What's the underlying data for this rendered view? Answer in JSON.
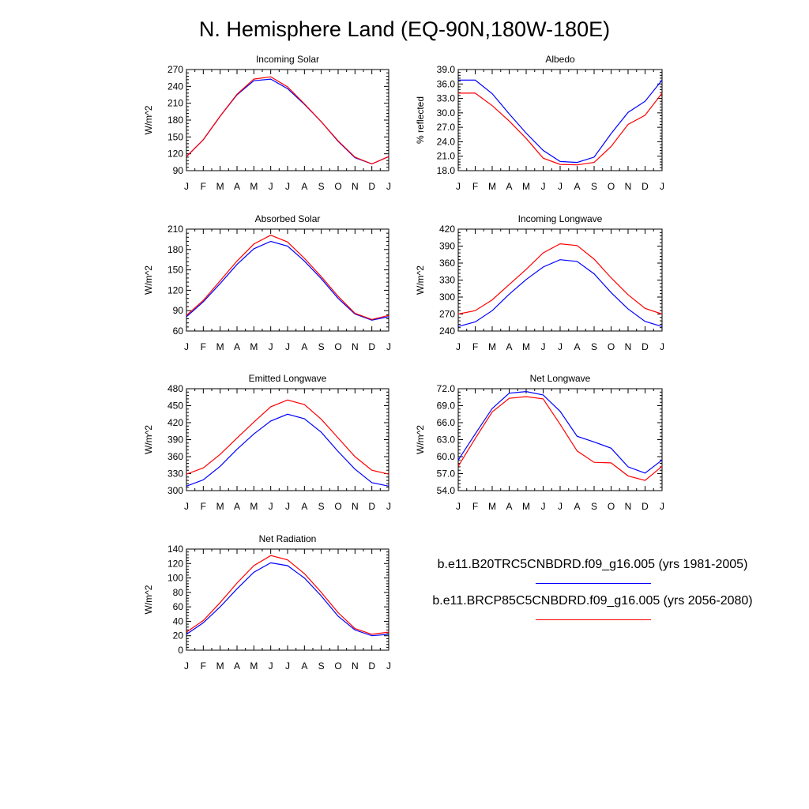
{
  "title": "N. Hemisphere Land (EQ-90N,180W-180E)",
  "colors": {
    "run1": "#0000ff",
    "run2": "#ff0000",
    "axis": "#000000"
  },
  "legend": [
    {
      "label": "b.e11.B20TRC5CNBDRD.f09_g16.005 (yrs 1981-2005)",
      "color": "#0000ff"
    },
    {
      "label": "b.e11.BRCP85C5CNBDRD.f09_g16.005 (yrs 2056-2080)",
      "color": "#ff0000"
    }
  ],
  "chart_data": [
    {
      "type": "line",
      "title": "Incoming Solar",
      "ylabel": "W/m^2",
      "categories": [
        "J",
        "F",
        "M",
        "A",
        "M",
        "J",
        "J",
        "A",
        "S",
        "O",
        "N",
        "D",
        "J"
      ],
      "ylim": [
        90,
        270
      ],
      "yticks": [
        "90",
        "120",
        "150",
        "180",
        "210",
        "240",
        "270"
      ],
      "series": [
        {
          "name": "b.e11.B20TRC5CNBDRD.f09_g16.005 (yrs 1981-2005)",
          "values": [
            115,
            145,
            187,
            225,
            250,
            253,
            236,
            208,
            177,
            142,
            113,
            102,
            115
          ]
        },
        {
          "name": "b.e11.BRCP85C5CNBDRD.f09_g16.005 (yrs 2056-2080)",
          "values": [
            115,
            145,
            187,
            226,
            253,
            257,
            239,
            209,
            177,
            143,
            114,
            102,
            115
          ]
        }
      ]
    },
    {
      "type": "line",
      "title": "Albedo",
      "ylabel": "% reflected",
      "categories": [
        "J",
        "F",
        "M",
        "A",
        "M",
        "J",
        "J",
        "A",
        "S",
        "O",
        "N",
        "D",
        "J"
      ],
      "ylim": [
        18,
        39
      ],
      "yticks": [
        "18.0",
        "21.0",
        "24.0",
        "27.0",
        "30.0",
        "33.0",
        "36.0",
        "39.0"
      ],
      "series": [
        {
          "name": "b.e11.B20TRC5CNBDRD.f09_g16.005 (yrs 1981-2005)",
          "values": [
            36.8,
            36.8,
            34.0,
            29.8,
            25.8,
            22.2,
            19.9,
            19.7,
            20.8,
            25.7,
            30.1,
            32.4,
            36.8
          ]
        },
        {
          "name": "b.e11.BRCP85C5CNBDRD.f09_g16.005 (yrs 2056-2080)",
          "values": [
            34.1,
            34.1,
            31.5,
            28.3,
            24.7,
            20.6,
            19.3,
            19.2,
            19.7,
            23.0,
            27.6,
            29.5,
            34.1
          ]
        }
      ]
    },
    {
      "type": "line",
      "title": "Absorbed Solar",
      "ylabel": "W/m^2",
      "categories": [
        "J",
        "F",
        "M",
        "A",
        "M",
        "J",
        "J",
        "A",
        "S",
        "O",
        "N",
        "D",
        "J"
      ],
      "ylim": [
        60,
        210
      ],
      "yticks": [
        "60",
        "90",
        "120",
        "150",
        "180",
        "210"
      ],
      "series": [
        {
          "name": "b.e11.B20TRC5CNBDRD.f09_g16.005 (yrs 1981-2005)",
          "values": [
            81,
            103,
            130,
            158,
            181,
            192,
            185,
            163,
            137,
            108,
            85,
            76,
            81
          ]
        },
        {
          "name": "b.e11.BRCP85C5CNBDRD.f09_g16.005 (yrs 2056-2080)",
          "values": [
            83,
            105,
            134,
            163,
            188,
            201,
            191,
            167,
            140,
            111,
            86,
            77,
            83
          ]
        }
      ]
    },
    {
      "type": "line",
      "title": "Incoming Longwave",
      "ylabel": "W/m^2",
      "categories": [
        "J",
        "F",
        "M",
        "A",
        "M",
        "J",
        "J",
        "A",
        "S",
        "O",
        "N",
        "D",
        "J"
      ],
      "ylim": [
        240,
        420
      ],
      "yticks": [
        "240",
        "270",
        "300",
        "330",
        "360",
        "390",
        "420"
      ],
      "series": [
        {
          "name": "b.e11.B20TRC5CNBDRD.f09_g16.005 (yrs 1981-2005)",
          "values": [
            248,
            256,
            276,
            305,
            331,
            353,
            366,
            363,
            341,
            308,
            279,
            257,
            248
          ]
        },
        {
          "name": "b.e11.BRCP85C5CNBDRD.f09_g16.005 (yrs 2056-2080)",
          "values": [
            270,
            276,
            295,
            322,
            349,
            378,
            394,
            391,
            367,
            334,
            304,
            280,
            270
          ]
        }
      ]
    },
    {
      "type": "line",
      "title": "Emitted Longwave",
      "ylabel": "W/m^2",
      "categories": [
        "J",
        "F",
        "M",
        "A",
        "M",
        "J",
        "J",
        "A",
        "S",
        "O",
        "N",
        "D",
        "J"
      ],
      "ylim": [
        300,
        480
      ],
      "yticks": [
        "300",
        "330",
        "360",
        "390",
        "420",
        "450",
        "480"
      ],
      "series": [
        {
          "name": "b.e11.B20TRC5CNBDRD.f09_g16.005 (yrs 1981-2005)",
          "values": [
            308,
            319,
            343,
            373,
            400,
            423,
            435,
            427,
            403,
            369,
            338,
            314,
            308
          ]
        },
        {
          "name": "b.e11.BRCP85C5CNBDRD.f09_g16.005 (yrs 2056-2080)",
          "values": [
            329,
            340,
            364,
            393,
            421,
            448,
            460,
            452,
            426,
            393,
            360,
            336,
            329
          ]
        }
      ]
    },
    {
      "type": "line",
      "title": "Net Longwave",
      "ylabel": "W/m^2",
      "categories": [
        "J",
        "F",
        "M",
        "A",
        "M",
        "J",
        "J",
        "A",
        "S",
        "O",
        "N",
        "D",
        "J"
      ],
      "ylim": [
        54,
        72
      ],
      "yticks": [
        "54.0",
        "57.0",
        "60.0",
        "63.0",
        "66.0",
        "69.0",
        "72.0"
      ],
      "series": [
        {
          "name": "b.e11.B20TRC5CNBDRD.f09_g16.005 (yrs 1981-2005)",
          "values": [
            59.4,
            64.0,
            68.5,
            71.2,
            71.5,
            70.9,
            68.0,
            63.6,
            62.6,
            61.5,
            58.2,
            57.1,
            59.4
          ]
        },
        {
          "name": "b.e11.BRCP85C5CNBDRD.f09_g16.005 (yrs 2056-2080)",
          "values": [
            58.3,
            63.2,
            67.9,
            70.3,
            70.6,
            70.2,
            65.7,
            61.0,
            59.0,
            58.9,
            56.6,
            55.8,
            58.3
          ]
        }
      ]
    },
    {
      "type": "line",
      "title": "Net Radiation",
      "ylabel": "W/m^2",
      "categories": [
        "J",
        "F",
        "M",
        "A",
        "M",
        "J",
        "J",
        "A",
        "S",
        "O",
        "N",
        "D",
        "J"
      ],
      "ylim": [
        0,
        140
      ],
      "yticks": [
        "0",
        "20",
        "40",
        "60",
        "80",
        "100",
        "120",
        "140"
      ],
      "series": [
        {
          "name": "b.e11.B20TRC5CNBDRD.f09_g16.005 (yrs 1981-2005)",
          "values": [
            22,
            38,
            60,
            85,
            108,
            121,
            117,
            100,
            75,
            47,
            28,
            20,
            22
          ]
        },
        {
          "name": "b.e11.BRCP85C5CNBDRD.f09_g16.005 (yrs 2056-2080)",
          "values": [
            25,
            41,
            66,
            93,
            117,
            131,
            125,
            106,
            80,
            52,
            30,
            22,
            25
          ]
        }
      ]
    }
  ]
}
